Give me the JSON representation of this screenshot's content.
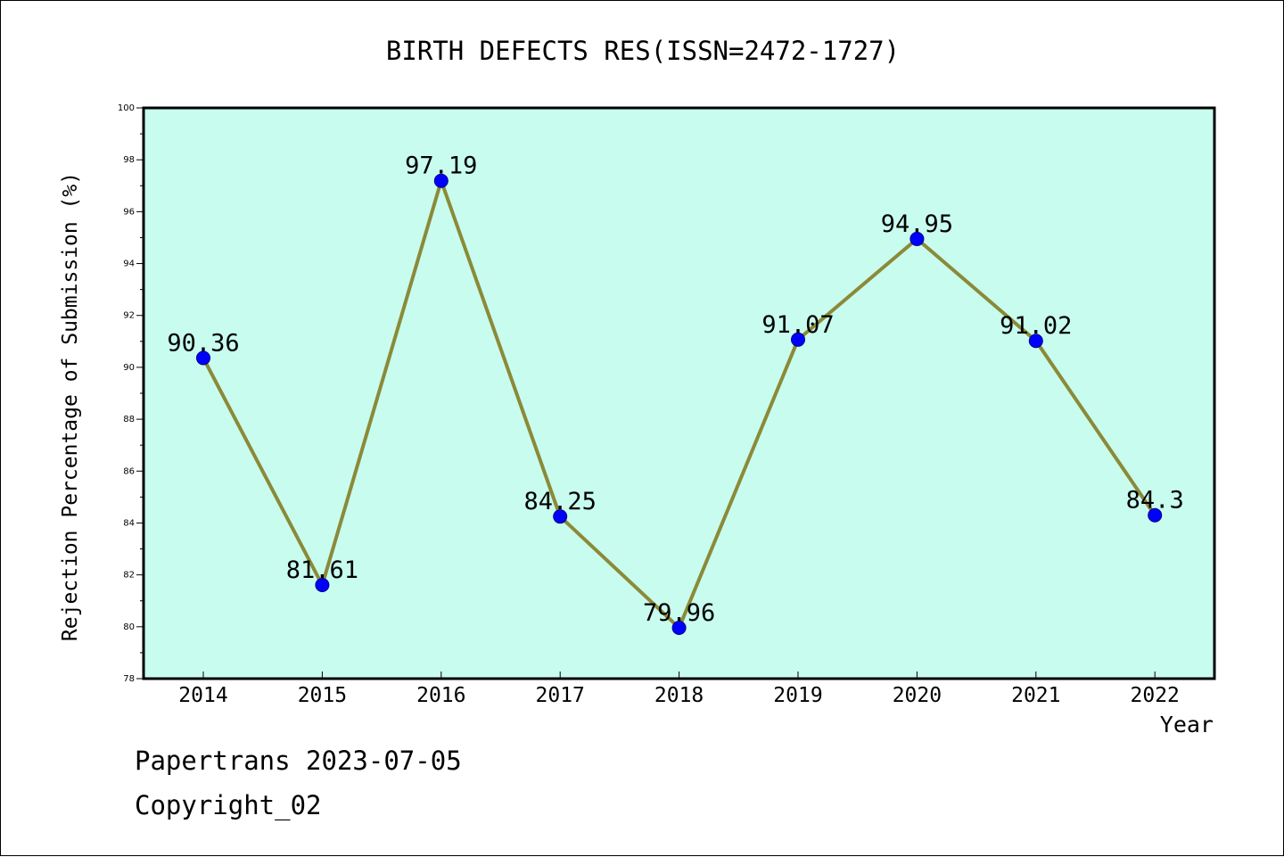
{
  "chart_data": {
    "type": "line",
    "title": "BIRTH DEFECTS RES(ISSN=2472-1727)",
    "xlabel": "Year",
    "ylabel": "Rejection Percentage of Submission (%)",
    "categories": [
      "2014",
      "2015",
      "2016",
      "2017",
      "2018",
      "2019",
      "2020",
      "2021",
      "2022"
    ],
    "values": [
      90.36,
      81.61,
      97.19,
      84.25,
      79.96,
      91.07,
      94.95,
      91.02,
      84.3
    ],
    "data_labels": [
      "90.36",
      "81.61",
      "97.19",
      "84.25",
      "79.96",
      "91.07",
      "94.95",
      "91.02",
      "84.3"
    ],
    "ylim": [
      78,
      100
    ],
    "yticks": [
      "78",
      "80",
      "82",
      "84",
      "86",
      "88",
      "90",
      "92",
      "94",
      "96",
      "98",
      "100"
    ],
    "grid": false,
    "legend": "none",
    "colors": {
      "plot_background": "#c8fcee",
      "line": "#8b8a38",
      "marker": "#0000ff"
    }
  },
  "footer": {
    "line1": "Papertrans 2023-07-05",
    "line2": "Copyright_02"
  }
}
